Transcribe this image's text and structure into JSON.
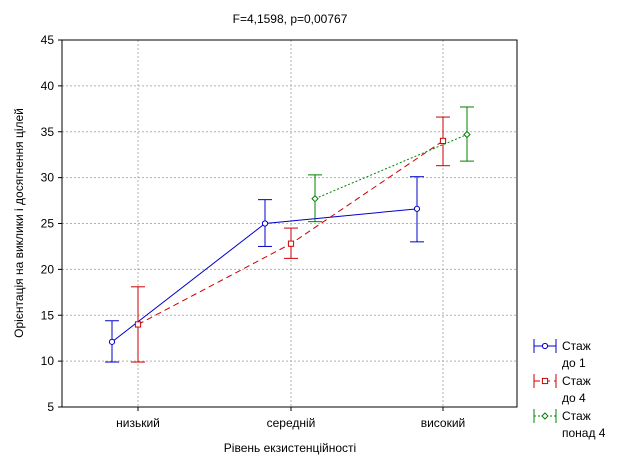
{
  "chart_data": {
    "type": "line",
    "title": "F=4,1598, p=0,00767",
    "xlabel": "Рівень екзистенційності",
    "ylabel": "Орієнтація на виклики і досягнення цілей",
    "categories": [
      "низький",
      "середній",
      "високий"
    ],
    "ylim": [
      5,
      45
    ],
    "yticks": [
      5,
      10,
      15,
      20,
      25,
      30,
      35,
      40,
      45
    ],
    "grid": true,
    "legend_position": "bottom-right",
    "series": [
      {
        "name_lines": [
          "Стаж",
          "до 1"
        ],
        "color": "#0000cc",
        "marker": "circle",
        "line_style": "solid",
        "values": [
          12.1,
          25.0,
          26.6
        ],
        "lower": [
          9.9,
          22.5,
          23.0
        ],
        "upper": [
          14.4,
          27.6,
          30.1
        ]
      },
      {
        "name_lines": [
          "Стаж",
          "до 4"
        ],
        "color": "#cc0000",
        "marker": "square",
        "line_style": "dashed",
        "values": [
          14.0,
          22.8,
          34.0
        ],
        "lower": [
          9.9,
          21.2,
          31.3
        ],
        "upper": [
          18.1,
          24.5,
          36.6
        ]
      },
      {
        "name_lines": [
          "Стаж",
          "понад 4"
        ],
        "color": "#008000",
        "marker": "diamond",
        "line_style": "dotted",
        "values": [
          null,
          27.7,
          34.7
        ],
        "lower": [
          null,
          25.2,
          31.8
        ],
        "upper": [
          null,
          30.3,
          37.7
        ]
      }
    ]
  }
}
